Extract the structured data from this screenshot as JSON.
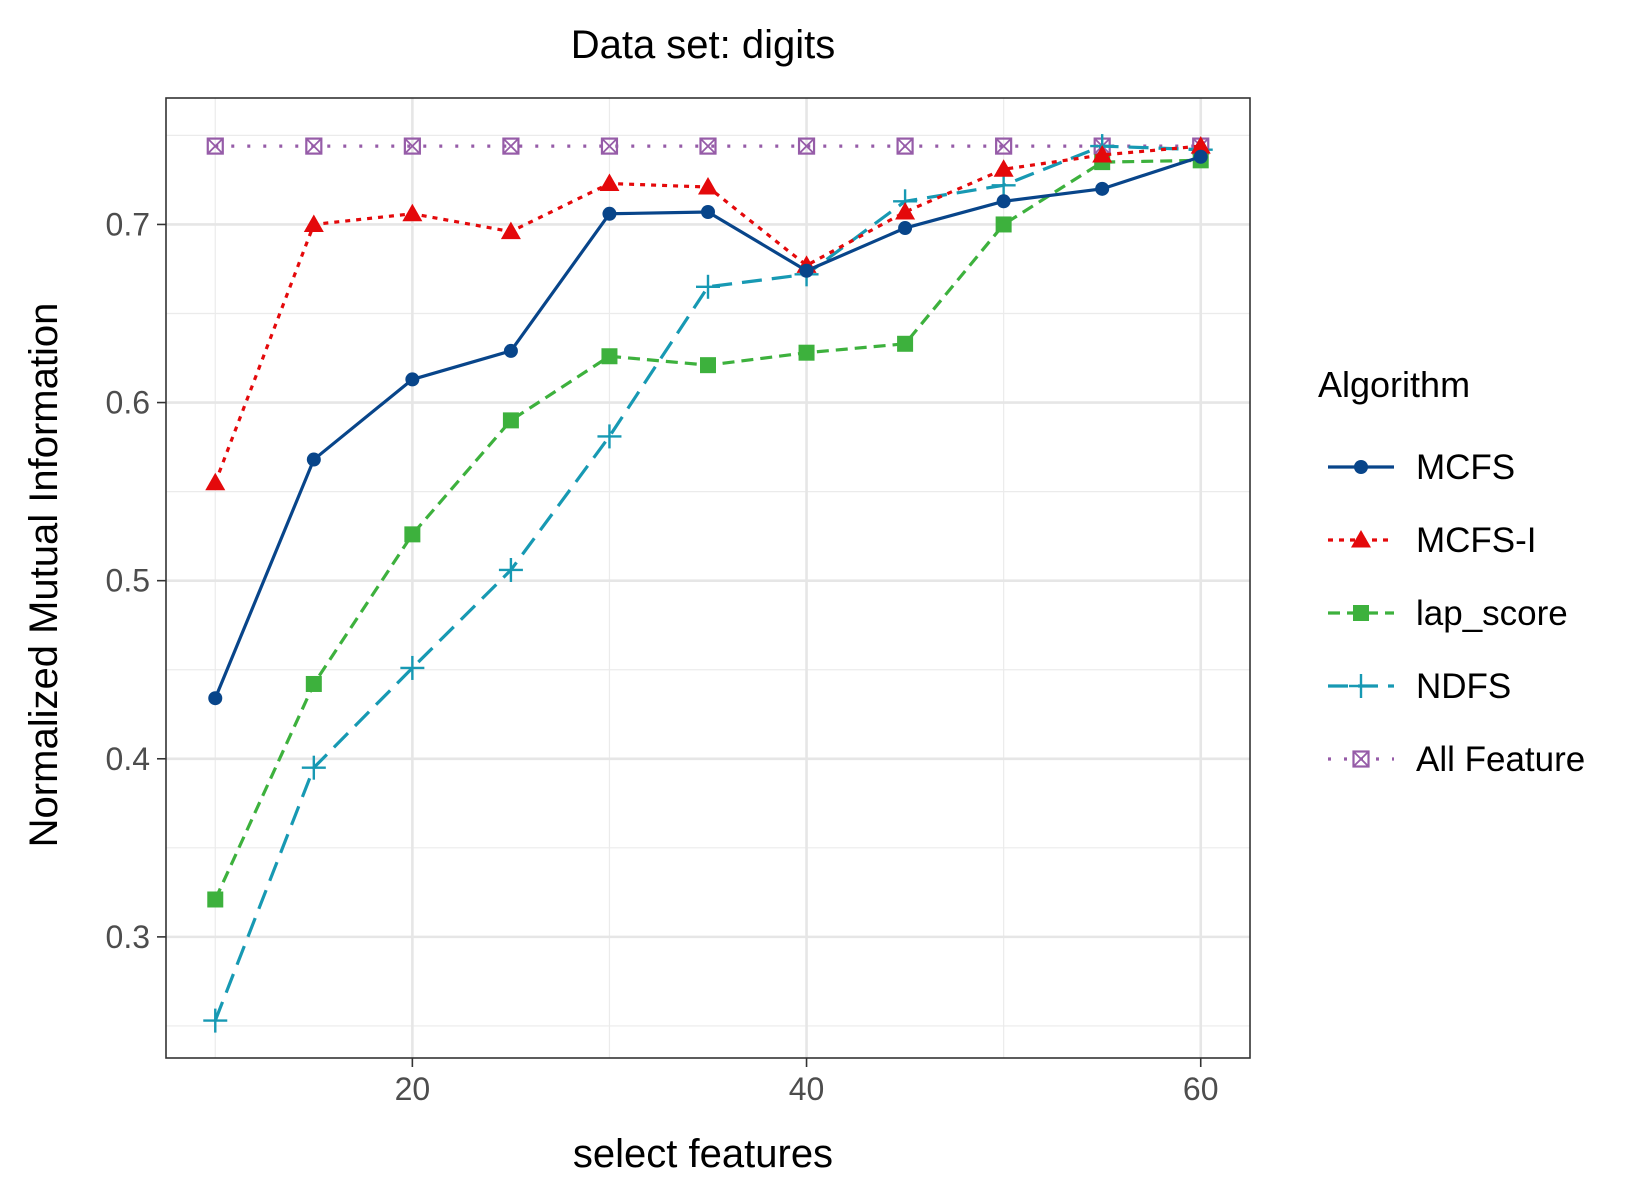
{
  "chart_data": {
    "type": "line",
    "title": "Data set: digits",
    "xlabel": "select features",
    "ylabel": "Normalized Mutual Information",
    "xlim": [
      7.5,
      62.5
    ],
    "ylim": [
      0.232,
      0.771
    ],
    "xticks": [
      20,
      40,
      60
    ],
    "xtick_labels": [
      "20",
      "40",
      "60"
    ],
    "yticks": [
      0.3,
      0.4,
      0.5,
      0.6,
      0.7
    ],
    "ytick_labels": [
      "0.3",
      "0.4",
      "0.5",
      "0.6",
      "0.7"
    ],
    "grid": true,
    "legend_title": "Algorithm",
    "legend_position": "right",
    "x": [
      10,
      15,
      20,
      25,
      30,
      35,
      40,
      45,
      50,
      55,
      60
    ],
    "series": [
      {
        "name": "MCFS",
        "color": "#08458a",
        "dash": "solid",
        "marker": "circle",
        "values": [
          0.434,
          0.568,
          0.613,
          0.629,
          0.706,
          0.707,
          0.674,
          0.698,
          0.713,
          0.72,
          0.738
        ]
      },
      {
        "name": "MCFS-I",
        "color": "#e4090b",
        "dash": "dotted",
        "marker": "triangle",
        "values": [
          0.555,
          0.7,
          0.706,
          0.696,
          0.723,
          0.721,
          0.677,
          0.707,
          0.731,
          0.739,
          0.744
        ]
      },
      {
        "name": "lap_score",
        "color": "#3db13d",
        "dash": "dashed",
        "marker": "square",
        "values": [
          0.321,
          0.442,
          0.526,
          0.59,
          0.626,
          0.621,
          0.628,
          0.633,
          0.7,
          0.735,
          0.736
        ]
      },
      {
        "name": "NDFS",
        "color": "#1799b3",
        "dash": "longdash",
        "marker": "plus",
        "values": [
          0.253,
          0.395,
          0.451,
          0.506,
          0.581,
          0.665,
          0.672,
          0.713,
          0.722,
          0.744,
          0.742
        ]
      },
      {
        "name": "All Feature",
        "color": "#965ca8",
        "dash": "dotted-sparse",
        "marker": "boxcross",
        "values": [
          0.744,
          0.744,
          0.744,
          0.744,
          0.744,
          0.744,
          0.744,
          0.744,
          0.744,
          0.744,
          0.744
        ]
      }
    ]
  }
}
